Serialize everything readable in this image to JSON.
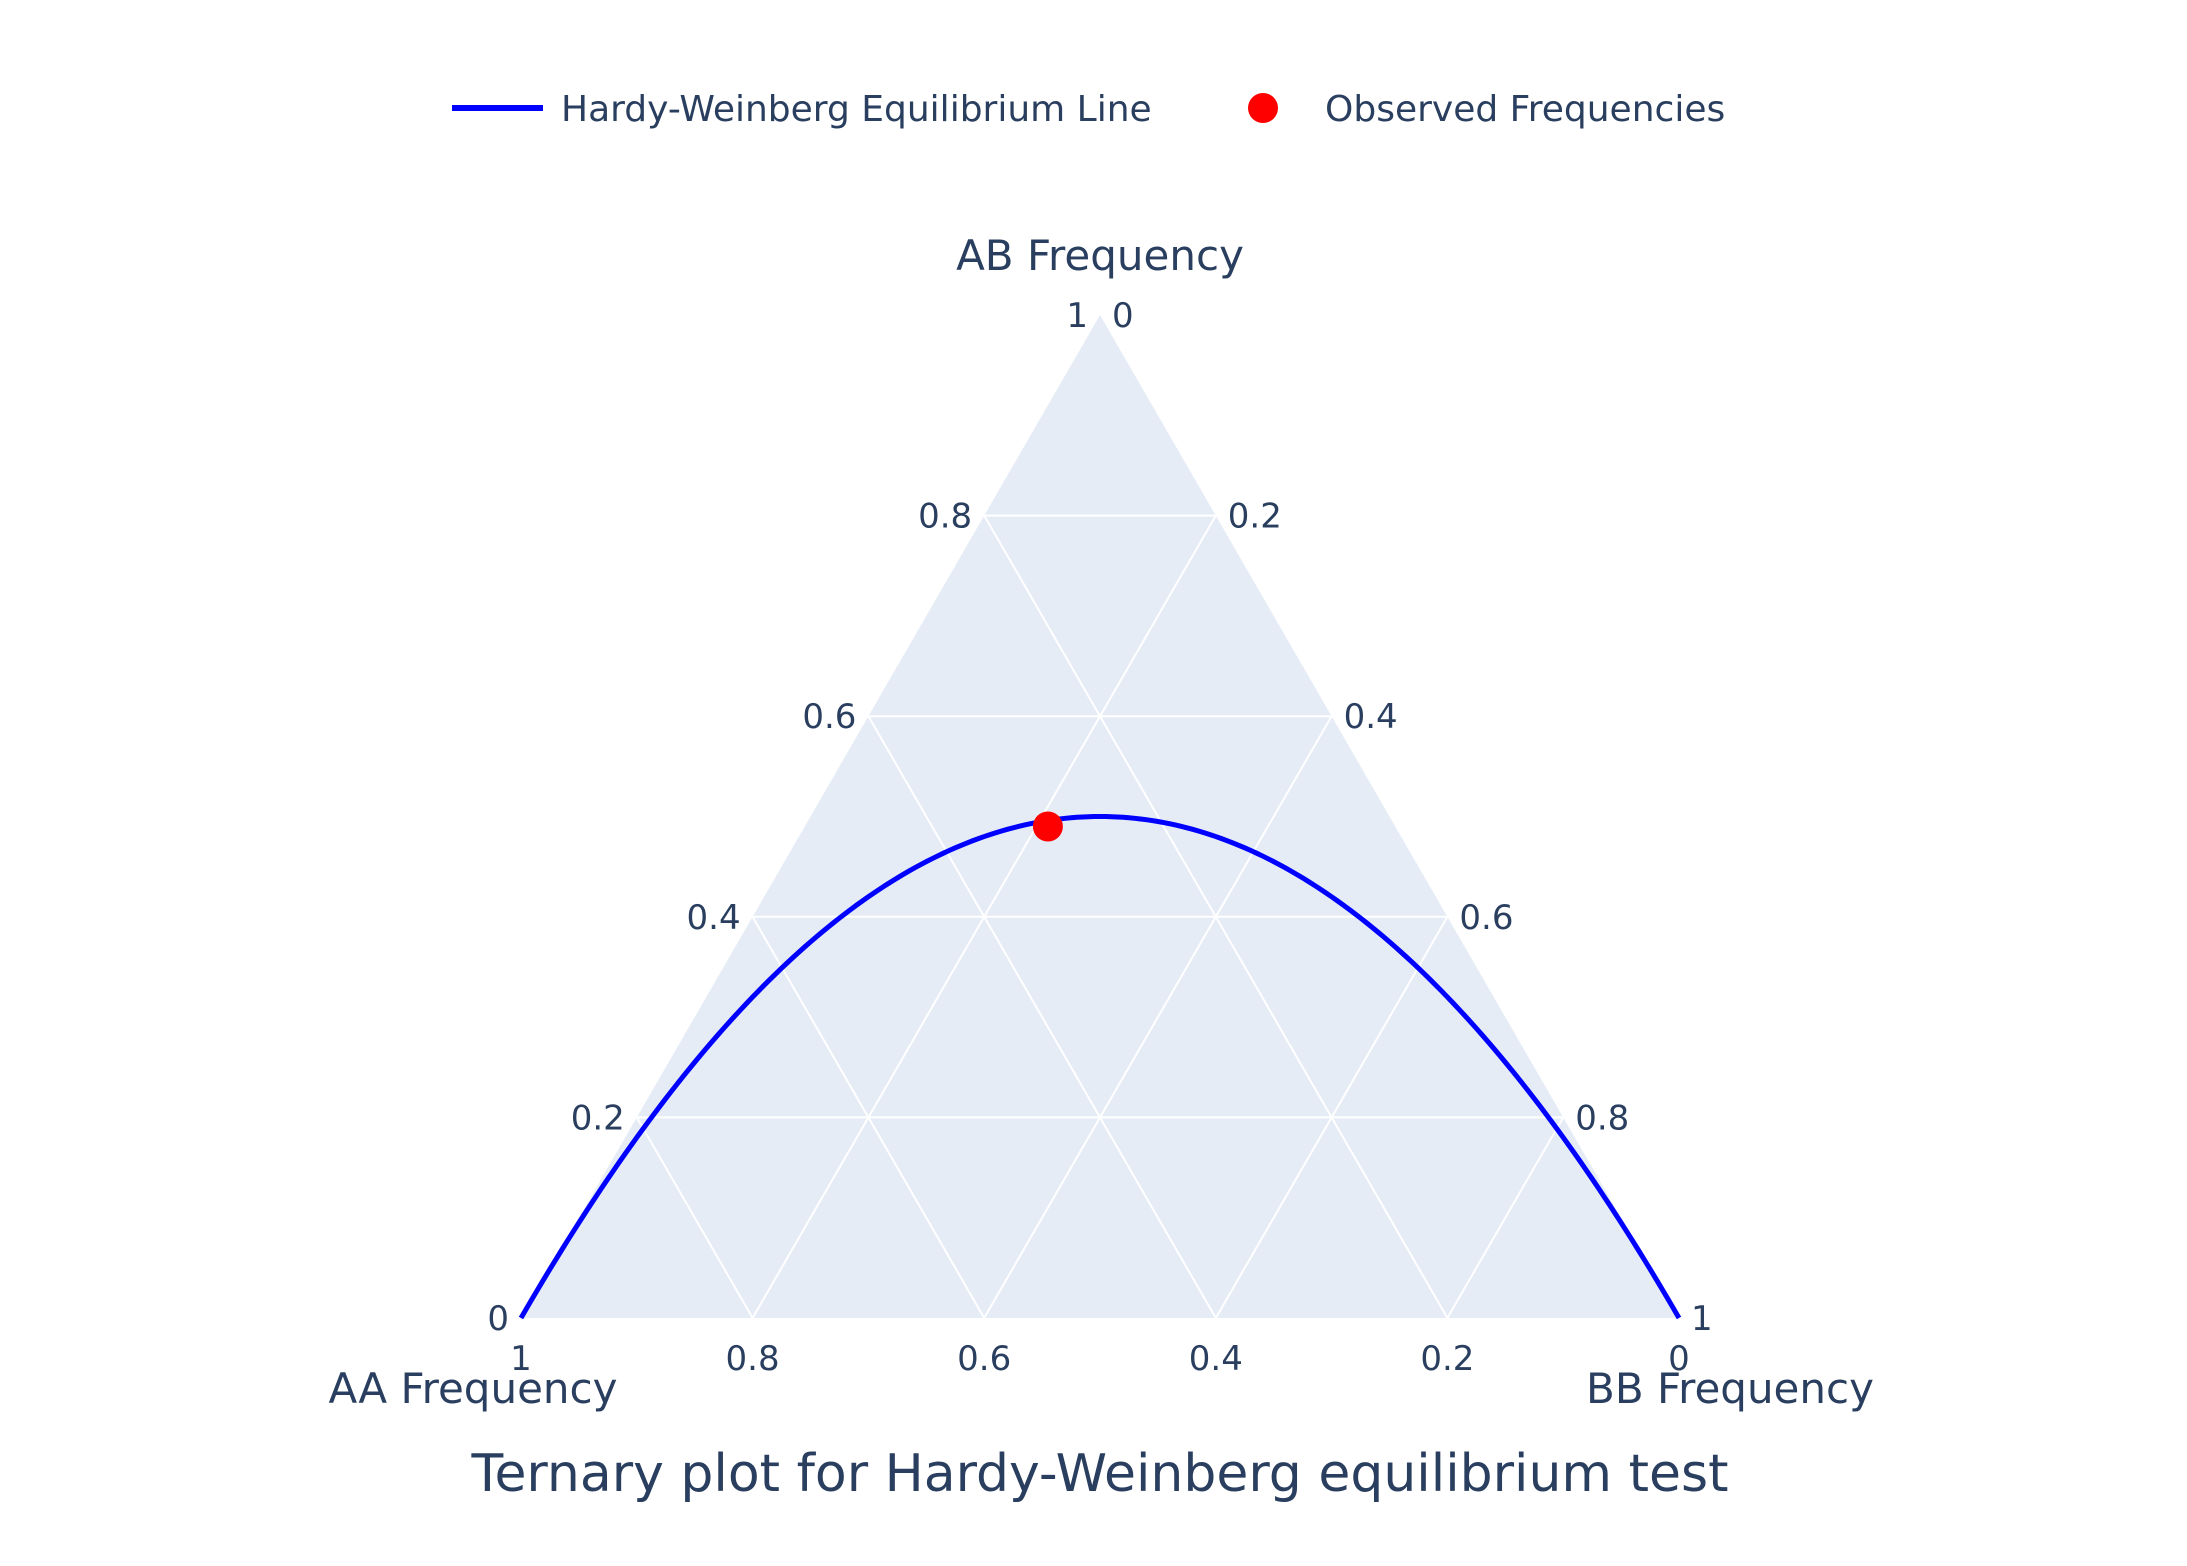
{
  "legend": {
    "line_label": "Hardy-Weinberg Equilibrium Line",
    "marker_label": "Observed Frequencies"
  },
  "title": "Ternary plot for Hardy-Weinberg equilibrium test",
  "chart_data": {
    "type": "ternary",
    "title": "Ternary plot for Hardy-Weinberg equilibrium test",
    "axes": {
      "a": {
        "title": "AA Frequency",
        "ticks": [
          "0",
          "0.2",
          "0.4",
          "0.6",
          "0.8",
          "1"
        ]
      },
      "b": {
        "title": "AB Frequency",
        "ticks": [
          "0",
          "0.2",
          "0.4",
          "0.6",
          "0.8",
          "1"
        ]
      },
      "c": {
        "title": "BB Frequency",
        "ticks": [
          "0",
          "0.2",
          "0.4",
          "0.6",
          "0.8",
          "1"
        ]
      }
    },
    "grid": true,
    "legend_position": "top",
    "series": [
      {
        "name": "Hardy-Weinberg Equilibrium Line",
        "type": "line",
        "color": "#0000ff",
        "equation": "AA = p^2, AB = 2p(1-p), BB = (1-p)^2, p from 0 to 1"
      },
      {
        "name": "Observed Frequencies",
        "type": "scatter",
        "color": "#ff0000",
        "points": [
          {
            "AA": 0.3,
            "AB": 0.49,
            "BB": 0.21
          }
        ]
      }
    ],
    "colors": {
      "plot_background": "#e5ecf6",
      "grid": "#ffffff",
      "text": "#2a3f5f"
    }
  }
}
